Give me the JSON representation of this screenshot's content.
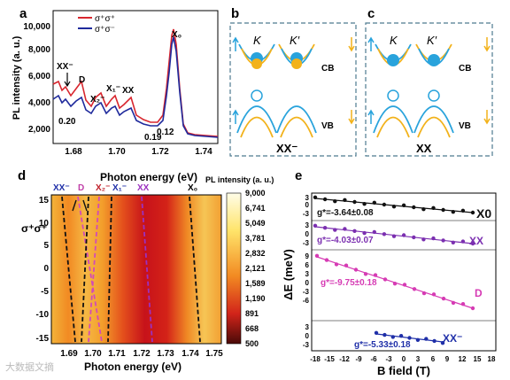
{
  "panels": {
    "a": {
      "label": "a",
      "ylabel": "PL intensity (a. u.)",
      "yticks": [
        "2,000",
        "4,000",
        "6,000",
        "8,000",
        "10,000"
      ],
      "xticks": [
        "1.68",
        "1.70",
        "1.72",
        "1.74"
      ],
      "legend": [
        "σ⁺σ⁺",
        "σ⁺σ⁻"
      ],
      "peak_labels": [
        "XX⁻",
        "D",
        "X₂⁻",
        "X₁⁻",
        "XX",
        "X₀"
      ],
      "ratios": [
        "0.20",
        "0.19",
        "0.12"
      ],
      "colors": {
        "co": "#d8262e",
        "cross": "#1f2a9c"
      }
    },
    "b": {
      "label": "b",
      "valleys": [
        "K",
        "K′"
      ],
      "cb": "CB",
      "vb": "VB",
      "state": "XX⁻"
    },
    "c": {
      "label": "c",
      "valleys": [
        "K",
        "K′"
      ],
      "cb": "CB",
      "vb": "VB",
      "state": "XX"
    },
    "d": {
      "label": "d",
      "top_axis_title": "Photon energy (eV)",
      "bottom_axis_title": "Photon energy (eV)",
      "ylabel": "σ⁺σ⁺",
      "yticks": [
        "15",
        "10",
        "5",
        "0",
        "-5",
        "-10",
        "-15"
      ],
      "xticks": [
        "1.69",
        "1.70",
        "1.71",
        "1.72",
        "1.73",
        "1.74",
        "1.75"
      ],
      "top_labels": [
        "XX⁻",
        "D",
        "X₂⁻",
        "X₁⁻",
        "XX",
        "X₀"
      ],
      "colorbar_title": "PL intensity (a. u.)",
      "colorbar_ticks": [
        "9,000",
        "6,741",
        "5,049",
        "3,781",
        "2,832",
        "2,121",
        "1,589",
        "1,190",
        "891",
        "668",
        "500"
      ]
    },
    "e": {
      "label": "e",
      "ylabel": "ΔE (meV)",
      "xlabel": "B field (T)",
      "xticks": [
        "-18",
        "-15",
        "-12",
        "-9",
        "-6",
        "-3",
        "0",
        "3",
        "6",
        "9",
        "12",
        "15",
        "18"
      ],
      "series": [
        {
          "name": "X0",
          "g": "g*=-3.64±0.08",
          "color": "#111111",
          "yticks": [
            "3",
            "0",
            "-3"
          ]
        },
        {
          "name": "XX",
          "g": "g*=-4.03±0.07",
          "color": "#7b2fb0",
          "yticks": [
            "3",
            "0",
            "-3"
          ]
        },
        {
          "name": "D",
          "g": "g*=-9.75±0.18",
          "color": "#d63bb4",
          "yticks": [
            "9",
            "6",
            "3",
            "0",
            "-3",
            "-6"
          ]
        },
        {
          "name": "XX⁻",
          "g": "g*=-5.33±0.18",
          "color": "#1f2fa8",
          "yticks": [
            "3",
            "0",
            "-3"
          ]
        }
      ]
    }
  },
  "watermark": "大数据文摘"
}
